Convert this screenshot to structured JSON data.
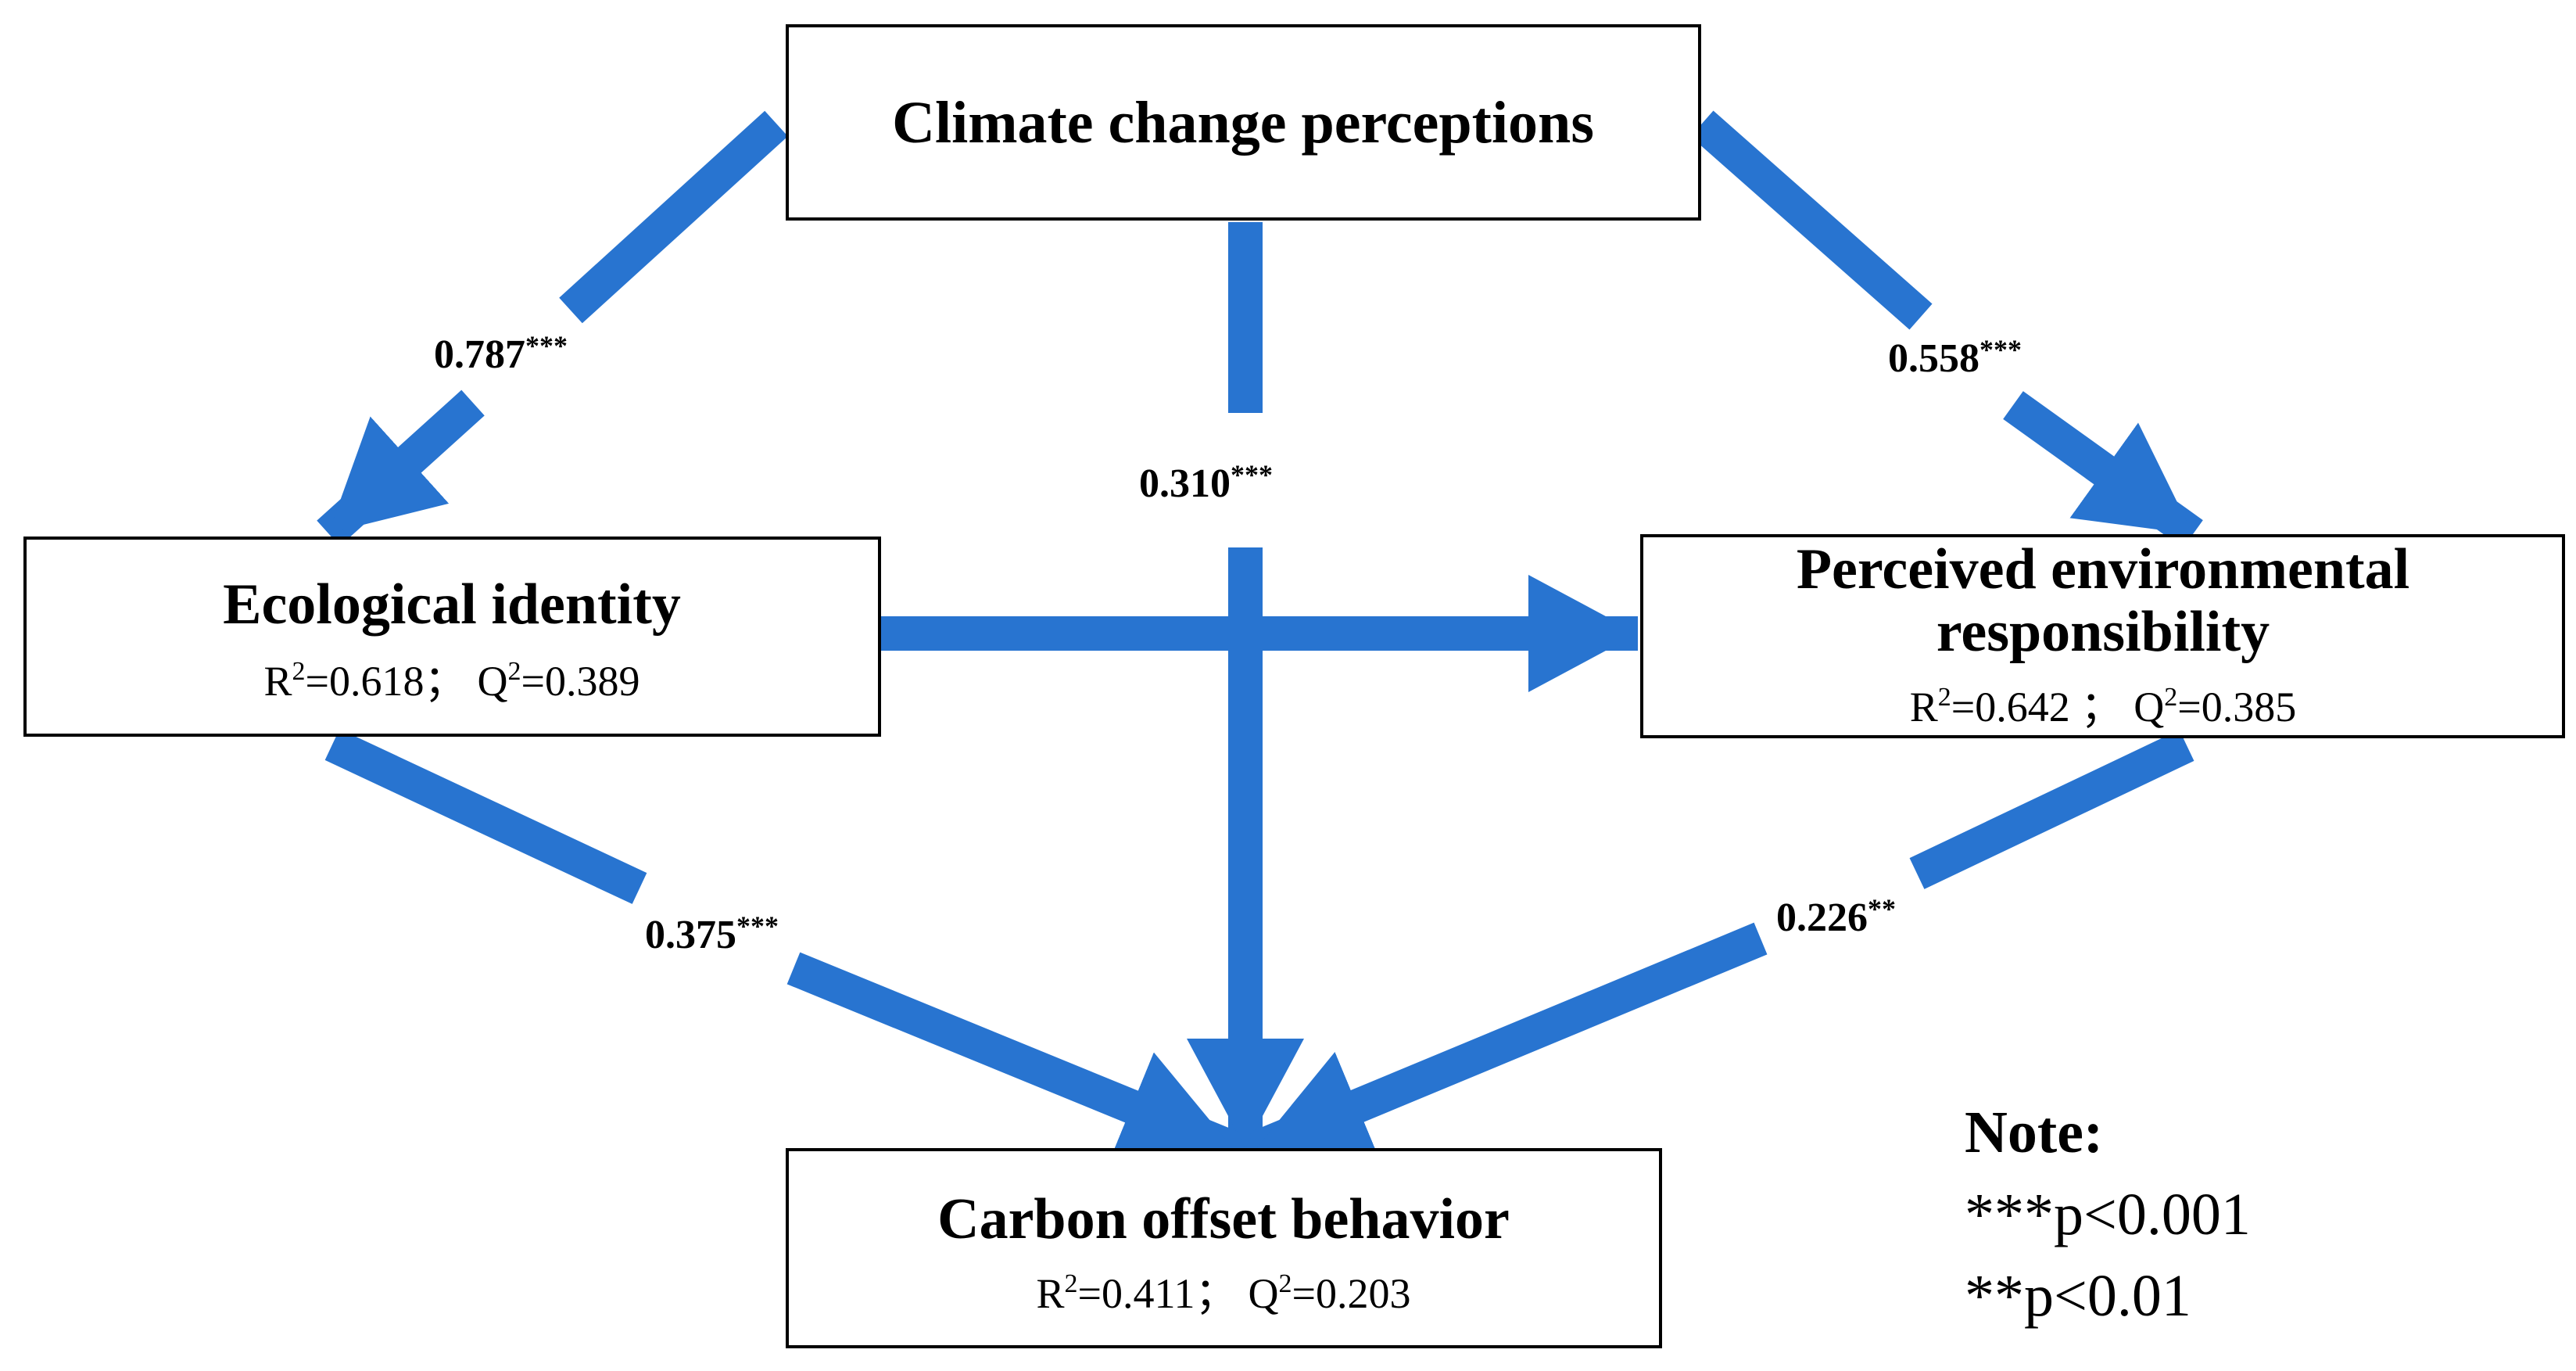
{
  "arrow_color": "#2874D0",
  "nodes": {
    "climate": {
      "title": "Climate change perceptions"
    },
    "ecological": {
      "title": "Ecological identity",
      "r2_label": "R",
      "r2_sup": "2",
      "r2_value": "=0.618；",
      "q2_label": "Q",
      "q2_sup": "2",
      "q2_value": "=0.389"
    },
    "responsibility": {
      "title_line1": "Perceived environmental",
      "title_line2": "responsibility",
      "r2_label": "R",
      "r2_sup": "2",
      "r2_value": "=0.642 ；",
      "q2_label": "Q",
      "q2_sup": "2",
      "q2_value": "=0.385"
    },
    "behavior": {
      "title": "Carbon offset behavior",
      "r2_label": "R",
      "r2_sup": "2",
      "r2_value": "=0.411；",
      "q2_label": "Q",
      "q2_sup": "2",
      "q2_value": "=0.203"
    }
  },
  "paths": {
    "climate_to_ecological": {
      "value": "0.787",
      "stars": "***"
    },
    "climate_to_responsibility": {
      "value": "0.558",
      "stars": "***"
    },
    "climate_to_behavior": {
      "value": "0.310",
      "stars": "***"
    },
    "ecological_to_behavior": {
      "value": "0.375",
      "stars": "***"
    },
    "responsibility_to_behavior": {
      "value": "0.226",
      "stars": "**"
    }
  },
  "note": {
    "title": "Note:",
    "line1": "***p<0.001",
    "line2": "**p<0.01"
  }
}
